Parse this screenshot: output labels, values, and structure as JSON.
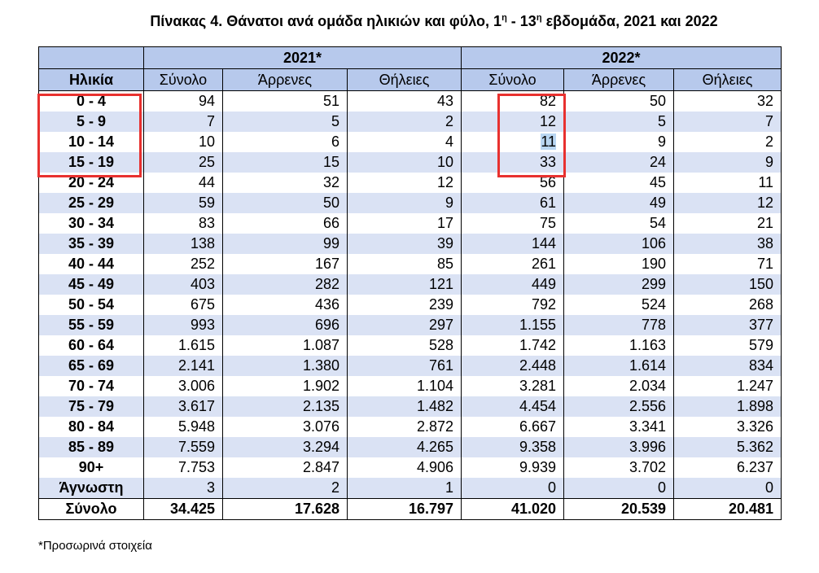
{
  "title": {
    "prefix": "Πίνακας 4. Θάνατοι ανά ομάδα ηλικιών και φύλο, 1",
    "sup1": "η",
    "middle": " - 13",
    "sup2": "η",
    "suffix": " εβδομάδα, 2021 και 2022"
  },
  "header": {
    "year1": "2021*",
    "year2": "2022*",
    "age": "Ηλικία",
    "cols": [
      "Σύνολο",
      "Άρρενες",
      "Θήλειες",
      "Σύνολο",
      "Άρρενες",
      "Θήλειες"
    ]
  },
  "rows": [
    [
      "0 - 4",
      "94",
      "51",
      "43",
      "82",
      "50",
      "32"
    ],
    [
      "5 - 9",
      "7",
      "5",
      "2",
      "12",
      "5",
      "7"
    ],
    [
      "10 - 14",
      "10",
      "6",
      "4",
      "11",
      "9",
      "2"
    ],
    [
      "15 - 19",
      "25",
      "15",
      "10",
      "33",
      "24",
      "9"
    ],
    [
      "20 - 24",
      "44",
      "32",
      "12",
      "56",
      "45",
      "11"
    ],
    [
      "25 - 29",
      "59",
      "50",
      "9",
      "61",
      "49",
      "12"
    ],
    [
      "30 - 34",
      "83",
      "66",
      "17",
      "75",
      "54",
      "21"
    ],
    [
      "35 - 39",
      "138",
      "99",
      "39",
      "144",
      "106",
      "38"
    ],
    [
      "40 - 44",
      "252",
      "167",
      "85",
      "261",
      "190",
      "71"
    ],
    [
      "45 - 49",
      "403",
      "282",
      "121",
      "449",
      "299",
      "150"
    ],
    [
      "50 - 54",
      "675",
      "436",
      "239",
      "792",
      "524",
      "268"
    ],
    [
      "55 - 59",
      "993",
      "696",
      "297",
      "1.155",
      "778",
      "377"
    ],
    [
      "60 - 64",
      "1.615",
      "1.087",
      "528",
      "1.742",
      "1.163",
      "579"
    ],
    [
      "65 - 69",
      "2.141",
      "1.380",
      "761",
      "2.448",
      "1.614",
      "834"
    ],
    [
      "70 - 74",
      "3.006",
      "1.902",
      "1.104",
      "3.281",
      "2.034",
      "1.247"
    ],
    [
      "75 - 79",
      "3.617",
      "2.135",
      "1.482",
      "4.454",
      "2.556",
      "1.898"
    ],
    [
      "80 - 84",
      "5.948",
      "3.076",
      "2.872",
      "6.667",
      "3.341",
      "3.326"
    ],
    [
      "85 - 89",
      "7.559",
      "3.294",
      "4.265",
      "9.358",
      "3.996",
      "5.362"
    ],
    [
      "90+",
      "7.753",
      "2.847",
      "4.906",
      "9.939",
      "3.702",
      "6.237"
    ],
    [
      "Άγνωστη",
      "3",
      "2",
      "1",
      "0",
      "0",
      "0"
    ],
    [
      "Σύνολο",
      "34.425",
      "17.628",
      "16.797",
      "41.020",
      "20.539",
      "20.481"
    ]
  ],
  "footnote": "*Προσωρινά στοιχεία",
  "annotation_color": "#e8312f"
}
